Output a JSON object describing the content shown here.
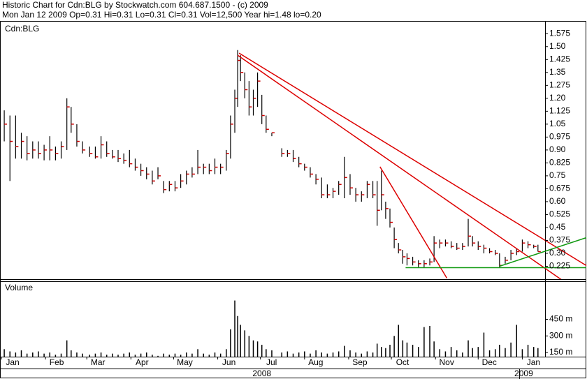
{
  "chart_data": {
    "type": "hlc",
    "title": "Historic Chart for Cdn:BLG by Stockwatch.com 604.687.1500 - (c) 2009",
    "subtitle": "Mon Jan 12 2009  Op=0.31  Hi=0.31  Lo=0.31  Cl=0.31  Vol=12,500  Year hi=1.48  lo=0.20",
    "symbol": "Cdn:BLG",
    "bar_color": "#000000",
    "close_color": "#cc0000",
    "x": [
      2,
      6,
      10,
      14,
      18,
      22,
      26,
      30,
      34,
      38,
      42,
      46,
      49,
      53,
      57,
      62,
      66,
      70,
      74,
      78,
      82,
      86,
      90,
      94,
      98,
      102,
      106,
      110,
      114,
      118,
      122,
      126,
      130,
      134,
      138,
      142,
      146,
      150,
      154,
      158,
      161,
      164,
      166,
      168,
      171,
      174,
      177,
      180,
      183,
      186,
      190,
      197,
      201,
      205,
      209,
      213,
      217,
      221,
      225,
      229,
      233,
      237,
      241,
      245,
      249,
      253,
      257,
      261,
      264,
      267,
      270,
      273,
      276,
      279,
      282,
      285,
      289,
      293,
      297,
      301,
      304,
      308,
      312,
      316,
      320,
      324,
      328,
      331,
      335,
      339,
      343,
      347,
      350,
      354,
      358,
      362,
      366,
      370,
      374,
      377
    ],
    "high": [
      1.13,
      1.1,
      1.1,
      1.0,
      0.98,
      0.95,
      0.95,
      0.93,
      0.98,
      0.92,
      0.95,
      1.2,
      1.15,
      1.05,
      0.95,
      0.92,
      0.92,
      0.98,
      0.95,
      0.9,
      0.9,
      0.88,
      0.9,
      0.85,
      0.82,
      0.8,
      0.78,
      0.8,
      0.72,
      0.72,
      0.72,
      0.76,
      0.78,
      0.8,
      0.9,
      0.82,
      0.82,
      0.85,
      0.82,
      0.9,
      1.1,
      1.25,
      1.48,
      1.45,
      1.35,
      1.3,
      1.25,
      1.35,
      1.22,
      1.1,
      1.0,
      0.91,
      0.9,
      0.9,
      0.86,
      0.82,
      0.8,
      0.76,
      0.74,
      0.7,
      0.68,
      0.72,
      0.86,
      0.76,
      0.68,
      0.66,
      0.72,
      0.72,
      0.72,
      0.78,
      0.6,
      0.56,
      0.45,
      0.36,
      0.32,
      0.3,
      0.28,
      0.26,
      0.26,
      0.27,
      0.4,
      0.38,
      0.38,
      0.37,
      0.36,
      0.36,
      0.5,
      0.4,
      0.37,
      0.35,
      0.33,
      0.32,
      0.3,
      0.28,
      0.32,
      0.33,
      0.38,
      0.37,
      0.35,
      0.35
    ],
    "low": [
      0.95,
      0.72,
      0.85,
      0.85,
      0.84,
      0.85,
      0.85,
      0.84,
      0.84,
      0.84,
      0.85,
      0.9,
      1.0,
      0.92,
      0.88,
      0.86,
      0.85,
      0.85,
      0.86,
      0.85,
      0.83,
      0.82,
      0.8,
      0.78,
      0.75,
      0.73,
      0.7,
      0.73,
      0.65,
      0.66,
      0.66,
      0.68,
      0.7,
      0.74,
      0.76,
      0.76,
      0.76,
      0.76,
      0.76,
      0.78,
      0.85,
      1.0,
      1.15,
      1.3,
      1.2,
      1.1,
      1.1,
      1.15,
      1.05,
      1.0,
      0.98,
      0.86,
      0.86,
      0.83,
      0.8,
      0.78,
      0.74,
      0.7,
      0.62,
      0.62,
      0.62,
      0.64,
      0.62,
      0.64,
      0.6,
      0.6,
      0.62,
      0.62,
      0.46,
      0.55,
      0.5,
      0.45,
      0.33,
      0.3,
      0.24,
      0.23,
      0.23,
      0.22,
      0.22,
      0.23,
      0.25,
      0.33,
      0.34,
      0.33,
      0.32,
      0.32,
      0.34,
      0.34,
      0.32,
      0.3,
      0.3,
      0.29,
      0.22,
      0.24,
      0.26,
      0.29,
      0.31,
      0.33,
      0.33,
      0.31
    ],
    "close": [
      1.05,
      0.95,
      0.92,
      0.95,
      0.88,
      0.9,
      0.88,
      0.9,
      0.9,
      0.88,
      0.92,
      1.15,
      1.05,
      0.95,
      0.9,
      0.88,
      0.86,
      0.93,
      0.88,
      0.86,
      0.85,
      0.84,
      0.82,
      0.8,
      0.78,
      0.76,
      0.72,
      0.75,
      0.67,
      0.7,
      0.68,
      0.72,
      0.76,
      0.76,
      0.8,
      0.8,
      0.78,
      0.8,
      0.8,
      0.88,
      1.05,
      1.2,
      1.42,
      1.35,
      1.25,
      1.15,
      1.2,
      1.3,
      1.1,
      1.02,
      1.0,
      0.88,
      0.88,
      0.85,
      0.82,
      0.8,
      0.76,
      0.73,
      0.64,
      0.64,
      0.66,
      0.7,
      0.74,
      0.68,
      0.64,
      0.64,
      0.7,
      0.64,
      0.55,
      0.64,
      0.56,
      0.48,
      0.38,
      0.32,
      0.28,
      0.27,
      0.25,
      0.24,
      0.24,
      0.25,
      0.36,
      0.36,
      0.36,
      0.34,
      0.33,
      0.34,
      0.4,
      0.36,
      0.34,
      0.33,
      0.31,
      0.3,
      0.23,
      0.26,
      0.3,
      0.31,
      0.36,
      0.35,
      0.34,
      0.31
    ],
    "xlim": [
      0,
      382
    ],
    "xticks": [
      {
        "value": 0,
        "label": "Jan"
      },
      {
        "value": 31,
        "label": "Feb"
      },
      {
        "value": 60,
        "label": "Mar"
      },
      {
        "value": 91,
        "label": "Apr"
      },
      {
        "value": 121,
        "label": "May"
      },
      {
        "value": 152,
        "label": "Jun"
      },
      {
        "value": 182,
        "label": "Jul"
      },
      {
        "value": 213,
        "label": "Aug"
      },
      {
        "value": 244,
        "label": "Sep"
      },
      {
        "value": 274,
        "label": "Oct"
      },
      {
        "value": 305,
        "label": "Nov"
      },
      {
        "value": 335,
        "label": "Dec"
      },
      {
        "value": 366,
        "label": "Jan"
      }
    ],
    "year_labels": [
      "2008",
      "2009"
    ],
    "ylim": [
      0.15,
      1.645
    ],
    "yticks": [
      1.575,
      {
        "value": 1.5,
        "label": "1.50"
      },
      1.425,
      1.35,
      1.275,
      {
        "value": 1.2,
        "label": "1.20"
      },
      1.125,
      1.05,
      0.975,
      {
        "value": 0.9,
        "label": "0.90"
      },
      0.825,
      0.75,
      0.675,
      {
        "value": 0.6,
        "label": "0.60"
      },
      0.525,
      0.45,
      0.375,
      {
        "value": 0.3,
        "label": "0.30"
      },
      0.225
    ],
    "trendlines": [
      {
        "color": "#dd0000",
        "x": [
          167,
          411
        ],
        "y": [
          1.462,
          0.229
        ]
      },
      {
        "color": "#dd0000",
        "x": [
          166,
          411
        ],
        "y": [
          1.45,
          0.047
        ]
      },
      {
        "color": "#dd0000",
        "x": [
          266,
          313
        ],
        "y": [
          0.803,
          0.156
        ]
      },
      {
        "color": "#119911",
        "x": [
          284,
          411
        ],
        "y": [
          0.217,
          0.217
        ]
      },
      {
        "color": "#119911",
        "x": [
          350,
          411
        ],
        "y": [
          0.225,
          0.391
        ]
      }
    ],
    "volume": {
      "label": "Volume",
      "color": "#000000",
      "values": [
        180,
        160,
        150,
        170,
        140,
        150,
        160,
        140,
        150,
        130,
        140,
        260,
        170,
        150,
        140,
        130,
        140,
        150,
        130,
        140,
        130,
        140,
        150,
        130,
        140,
        150,
        130,
        120,
        140,
        130,
        140,
        130,
        150,
        140,
        180,
        140,
        130,
        150,
        140,
        180,
        360,
        620,
        480,
        400,
        350,
        300,
        260,
        250,
        220,
        180,
        170,
        150,
        160,
        140,
        150,
        160,
        140,
        170,
        150,
        140,
        150,
        160,
        210,
        170,
        150,
        140,
        160,
        150,
        230,
        200,
        190,
        220,
        300,
        400,
        260,
        240,
        220,
        200,
        380,
        390,
        250,
        180,
        160,
        200,
        170,
        150,
        260,
        190,
        200,
        330,
        170,
        180,
        220,
        190,
        240,
        400,
        180,
        220,
        200,
        190
      ],
      "ylim": [
        112.5,
        787.5
      ],
      "yticks": [
        {
          "value": 450,
          "label": "450 m"
        },
        {
          "value": 300,
          "label": "300 m"
        },
        {
          "value": 150,
          "label": "150 m"
        }
      ]
    }
  }
}
